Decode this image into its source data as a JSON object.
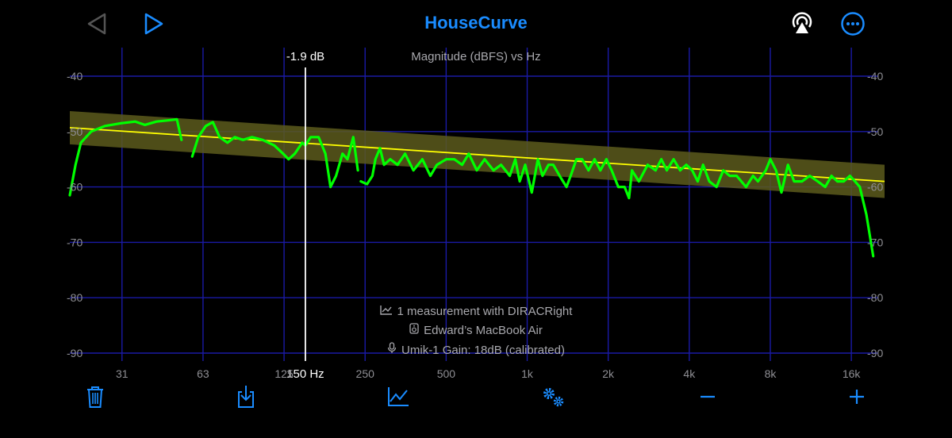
{
  "app": {
    "title": "HouseCurve"
  },
  "nav": {
    "back_icon": "play-left-icon",
    "forward_icon": "play-right-icon",
    "airplay_icon": "airplay-icon",
    "more_icon": "more-icon"
  },
  "chart": {
    "title": "Magnitude (dBFS) vs Hz",
    "cursor_readout": "-1.9 dB",
    "cursor_freq_label": "150 Hz",
    "y_ticks": [
      "-40",
      "-50",
      "-60",
      "-70",
      "-80",
      "-90"
    ],
    "x_ticks": [
      "31",
      "63",
      "125",
      "250",
      "500",
      "1k",
      "2k",
      "4k",
      "8k",
      "16k"
    ]
  },
  "chart_data": {
    "type": "line",
    "title": "Magnitude (dBFS) vs Hz",
    "xlabel": "",
    "ylabel": "",
    "x_scale": "log",
    "xlim": [
      20,
      20000
    ],
    "ylim": [
      -93,
      -38
    ],
    "grid": true,
    "x_ticks": [
      31.25,
      62.5,
      125,
      250,
      500,
      1000,
      2000,
      4000,
      8000,
      16000
    ],
    "x_tick_labels": [
      "31",
      "63",
      "125",
      "250",
      "500",
      "1k",
      "2k",
      "4k",
      "8k",
      "16k"
    ],
    "y_ticks": [
      -40,
      -50,
      -60,
      -70,
      -80,
      -90
    ],
    "cursor": {
      "freq": 150,
      "value_db": -1.9
    },
    "target": {
      "start": [
        20,
        -49.3
      ],
      "end": [
        20000,
        -59.0
      ],
      "band_db": 3,
      "color": "#ffff00"
    },
    "series": [
      {
        "color": "#00ff00",
        "segments": [
          [
            [
              20,
              -61.5
            ],
            [
              21,
              -56
            ],
            [
              22,
              -52
            ],
            [
              24,
              -50
            ],
            [
              27,
              -49
            ],
            [
              31,
              -48.5
            ],
            [
              35,
              -48.2
            ],
            [
              38,
              -48.8
            ],
            [
              42,
              -48.2
            ],
            [
              46,
              -48.0
            ],
            [
              50,
              -47.8
            ],
            [
              52,
              -51.5
            ]
          ],
          [
            [
              57,
              -54.5
            ],
            [
              60,
              -51
            ],
            [
              64,
              -49
            ],
            [
              68,
              -48.3
            ],
            [
              72,
              -51
            ],
            [
              77,
              -52
            ],
            [
              82,
              -51
            ],
            [
              88,
              -51.5
            ],
            [
              95,
              -51
            ],
            [
              104,
              -51.5
            ],
            [
              115,
              -52.5
            ],
            [
              124,
              -54
            ],
            [
              130,
              -55
            ],
            [
              137,
              -54
            ],
            [
              146,
              -52
            ],
            [
              150,
              -52.5
            ],
            [
              157,
              -51
            ],
            [
              168,
              -51
            ],
            [
              178,
              -54
            ],
            [
              186,
              -60
            ],
            [
              195,
              -58
            ],
            [
              206,
              -54
            ],
            [
              215,
              -55
            ],
            [
              226,
              -51
            ],
            [
              235,
              -57
            ]
          ],
          [
            [
              241,
              -59
            ],
            [
              254,
              -59.5
            ],
            [
              266,
              -58
            ],
            [
              273,
              -55
            ],
            [
              284,
              -53
            ],
            [
              294,
              -56
            ],
            [
              310,
              -55
            ],
            [
              330,
              -56
            ],
            [
              352,
              -54
            ],
            [
              378,
              -57
            ],
            [
              408,
              -55
            ],
            [
              437,
              -58
            ],
            [
              462,
              -56
            ],
            [
              500,
              -55
            ],
            [
              536,
              -55
            ],
            [
              573,
              -56
            ],
            [
              607,
              -54
            ],
            [
              650,
              -57
            ],
            [
              695,
              -55
            ],
            [
              750,
              -57
            ],
            [
              800,
              -56
            ],
            [
              862,
              -58
            ],
            [
              903,
              -55
            ],
            [
              938,
              -59
            ],
            [
              983,
              -56
            ],
            [
              1040,
              -61
            ],
            [
              1096,
              -55
            ],
            [
              1140,
              -58
            ],
            [
              1200,
              -56
            ],
            [
              1250,
              -56
            ],
            [
              1320,
              -58
            ],
            [
              1400,
              -60
            ],
            [
              1450,
              -58
            ],
            [
              1524,
              -55
            ],
            [
              1600,
              -55
            ],
            [
              1690,
              -57
            ],
            [
              1780,
              -55
            ],
            [
              1870,
              -57
            ],
            [
              1970,
              -55
            ],
            [
              2060,
              -57
            ],
            [
              2180,
              -60
            ],
            [
              2300,
              -60
            ],
            [
              2390,
              -62
            ],
            [
              2450,
              -57
            ],
            [
              2600,
              -59
            ],
            [
              2800,
              -56
            ],
            [
              3000,
              -57
            ],
            [
              3150,
              -55
            ],
            [
              3300,
              -57
            ],
            [
              3500,
              -55
            ],
            [
              3700,
              -57
            ],
            [
              3900,
              -56
            ],
            [
              4100,
              -57
            ],
            [
              4300,
              -59
            ],
            [
              4500,
              -56
            ],
            [
              4750,
              -59
            ],
            [
              5050,
              -60
            ],
            [
              5350,
              -57
            ],
            [
              5650,
              -58
            ],
            [
              6000,
              -58
            ],
            [
              6500,
              -60
            ],
            [
              6900,
              -58
            ],
            [
              7200,
              -59
            ],
            [
              7700,
              -57
            ],
            [
              8000,
              -55
            ],
            [
              8400,
              -57
            ],
            [
              8800,
              -61
            ],
            [
              9300,
              -56
            ],
            [
              9800,
              -59
            ],
            [
              10500,
              -59
            ],
            [
              11200,
              -58
            ],
            [
              12000,
              -59
            ],
            [
              12800,
              -60
            ],
            [
              13500,
              -58
            ],
            [
              14200,
              -59
            ],
            [
              15000,
              -59
            ],
            [
              15800,
              -58
            ],
            [
              16500,
              -59
            ],
            [
              17200,
              -60
            ],
            [
              18200,
              -65
            ],
            [
              19300,
              -72.5
            ]
          ]
        ]
      }
    ]
  },
  "info": {
    "measurement": "1 measurement with DIRACRight",
    "device": "Edward’s MacBook Air",
    "mic": "Umik-1  Gain: 18dB (calibrated)",
    "measurement_icon": "line-chart-icon",
    "device_icon": "speaker-icon",
    "mic_icon": "microphone-icon"
  },
  "toolbar": {
    "icons": [
      "trash-icon",
      "import-icon",
      "analyze-icon",
      "settings-icon",
      "minus-icon",
      "plus-icon"
    ]
  },
  "colors": {
    "accent": "#1a8cff",
    "grid": "#1a1aa6",
    "curve": "#00ff00",
    "target": "#ffff00",
    "band": "#5c5a1c",
    "text_muted": "#8e8e93"
  }
}
